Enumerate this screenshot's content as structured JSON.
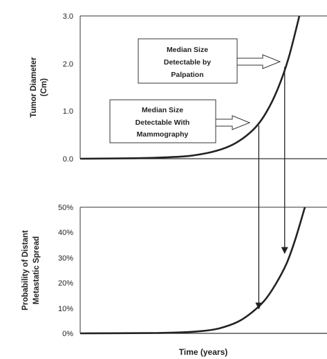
{
  "chart_data": [
    {
      "type": "line",
      "ylabel_lines": [
        "Tumor Diameter",
        "(Cm)"
      ],
      "y_ticks": [
        "0.0",
        "1.0",
        "2.0",
        "3.0"
      ],
      "ylim": [
        0,
        3
      ],
      "series": [
        {
          "x": [
            0.0,
            0.25,
            0.4,
            0.5,
            0.6,
            0.68,
            0.74,
            0.8,
            0.85,
            0.9,
            0.95,
            1.0
          ],
          "y": [
            0.0,
            0.01,
            0.03,
            0.06,
            0.14,
            0.26,
            0.42,
            0.66,
            0.98,
            1.45,
            2.1,
            3.0
          ]
        }
      ],
      "annotations": [
        {
          "lines": [
            "Median Size",
            "Detectable by",
            "Palpation"
          ],
          "x": 0.933,
          "y": 1.93
        },
        {
          "lines": [
            "Median Size",
            "Detectable With",
            "Mammography"
          ],
          "x": 0.815,
          "y": 0.7
        }
      ]
    },
    {
      "type": "line",
      "ylabel_lines": [
        "Probability of Distant",
        "Metastatic Spread"
      ],
      "y_ticks": [
        "0%",
        "10%",
        "20%",
        "30%",
        "40%",
        "50%"
      ],
      "ylim": [
        0,
        50
      ],
      "series": [
        {
          "x": [
            0.0,
            0.3,
            0.45,
            0.55,
            0.62,
            0.7,
            0.76,
            0.82,
            0.87,
            0.92,
            0.96,
            1.0
          ],
          "y": [
            0.0,
            0.1,
            0.4,
            1.0,
            2.0,
            4.5,
            8.0,
            13.0,
            19.5,
            28.0,
            38.0,
            50.0
          ]
        }
      ],
      "markers_y": [
        10,
        32
      ]
    }
  ],
  "xlabel": "Time (years)"
}
